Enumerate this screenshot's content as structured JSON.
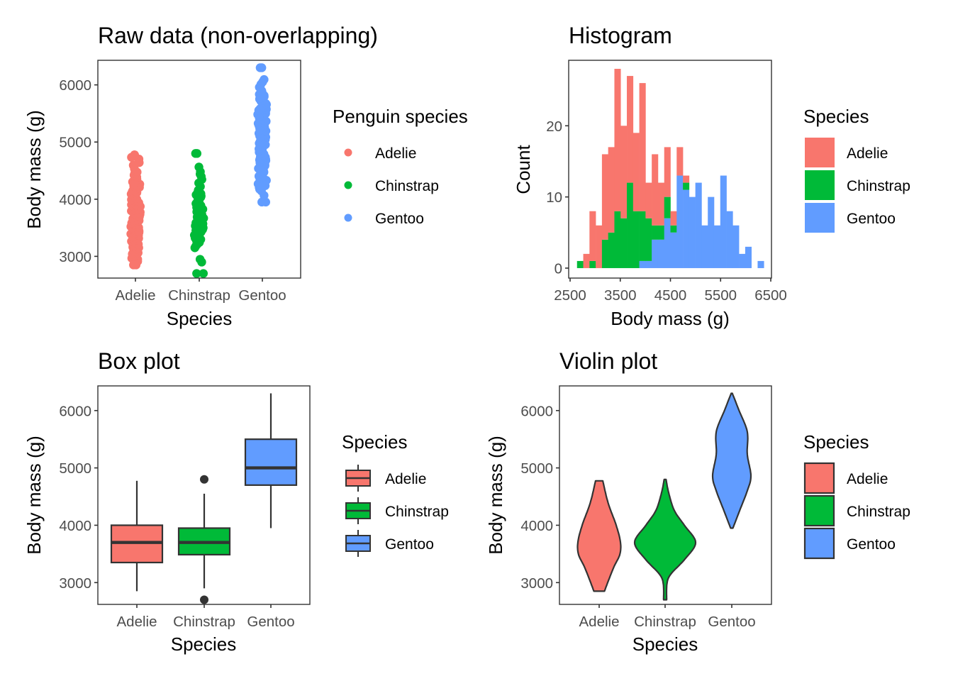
{
  "colors": {
    "Adelie": "#F8766D",
    "Chinstrap": "#00BA38",
    "Gentoo": "#619CFF",
    "outline": "#333333"
  },
  "chart_data": [
    {
      "id": "raw",
      "type": "scatter",
      "title": "Raw data (non-overlapping)",
      "xlabel": "Species",
      "ylabel": "Body mass (g)",
      "categories": [
        "Adelie",
        "Chinstrap",
        "Gentoo"
      ],
      "yticks": [
        3000,
        4000,
        5000,
        6000
      ],
      "ylim": [
        2620,
        6430
      ],
      "grid": false,
      "legend": {
        "title": "Penguin species",
        "position": "right",
        "entries": [
          "Adelie",
          "Chinstrap",
          "Gentoo"
        ]
      },
      "points_source": "binned counts of the histogram (same penguin data), jittered horizontally",
      "extremes": {
        "Adelie": [
          2850,
          4775
        ],
        "Chinstrap": [
          2700,
          2900,
          4800
        ],
        "Gentoo": [
          3950,
          6300
        ]
      }
    },
    {
      "id": "hist",
      "type": "bar",
      "subtype": "stacked-histogram",
      "title": "Histogram",
      "xlabel": "Body mass (g)",
      "ylabel": "Count",
      "xticks": [
        2500,
        3500,
        4500,
        5500,
        6500
      ],
      "yticks": [
        0,
        10,
        20
      ],
      "xlim": [
        2500,
        6500
      ],
      "ylim": [
        -1.4,
        29.2
      ],
      "bins": 30,
      "bin_start": 2638,
      "bin_width": 124.14,
      "stack_order": [
        "Gentoo",
        "Chinstrap",
        "Adelie"
      ],
      "series": [
        {
          "name": "Adelie",
          "values": [
            0,
            2,
            7,
            6,
            12,
            12,
            20,
            13,
            15,
            11,
            18,
            5,
            10,
            6,
            7,
            2,
            4,
            1,
            0,
            0,
            0,
            0,
            0,
            0,
            0,
            0,
            0,
            0,
            0,
            0
          ]
        },
        {
          "name": "Chinstrap",
          "values": [
            1,
            0,
            1,
            0,
            4,
            5,
            8,
            7,
            12,
            8,
            7,
            6,
            2,
            2,
            3,
            1,
            0,
            1,
            0,
            0,
            0,
            0,
            0,
            0,
            0,
            0,
            0,
            0,
            0,
            0
          ]
        },
        {
          "name": "Gentoo",
          "values": [
            0,
            0,
            0,
            0,
            0,
            0,
            0,
            0,
            0,
            0,
            1,
            1,
            4,
            4,
            7,
            5,
            13,
            11,
            10,
            12,
            6,
            10,
            6,
            13,
            8,
            6,
            2,
            3,
            0,
            1
          ]
        }
      ],
      "grid": false,
      "legend": {
        "title": "Species",
        "position": "right",
        "entries": [
          "Adelie",
          "Chinstrap",
          "Gentoo"
        ]
      }
    },
    {
      "id": "box",
      "type": "box",
      "title": "Box plot",
      "xlabel": "Species",
      "ylabel": "Body mass (g)",
      "categories": [
        "Adelie",
        "Chinstrap",
        "Gentoo"
      ],
      "yticks": [
        3000,
        4000,
        5000,
        6000
      ],
      "ylim": [
        2620,
        6430
      ],
      "boxes": [
        {
          "name": "Adelie",
          "lower_whisker": 2850,
          "q1": 3350,
          "median": 3700,
          "q3": 4000,
          "upper_whisker": 4775,
          "outliers": []
        },
        {
          "name": "Chinstrap",
          "lower_whisker": 2900,
          "q1": 3487,
          "median": 3700,
          "q3": 3950,
          "upper_whisker": 4550,
          "outliers": [
            2700,
            4800
          ]
        },
        {
          "name": "Gentoo",
          "lower_whisker": 3950,
          "q1": 4700,
          "median": 5000,
          "q3": 5500,
          "upper_whisker": 6300,
          "outliers": []
        }
      ],
      "grid": false,
      "legend": {
        "title": "Species",
        "position": "right",
        "entries": [
          "Adelie",
          "Chinstrap",
          "Gentoo"
        ]
      }
    },
    {
      "id": "violin",
      "type": "violin",
      "title": "Violin plot",
      "xlabel": "Species",
      "ylabel": "Body mass (g)",
      "categories": [
        "Adelie",
        "Chinstrap",
        "Gentoo"
      ],
      "yticks": [
        3000,
        4000,
        5000,
        6000
      ],
      "ylim": [
        2620,
        6430
      ],
      "violins": [
        {
          "name": "Adelie",
          "density_profile": [
            [
              2850,
              0.25
            ],
            [
              3020,
              0.42
            ],
            [
              3280,
              0.7
            ],
            [
              3490,
              0.97
            ],
            [
              3705,
              1.0
            ],
            [
              4000,
              0.8
            ],
            [
              4390,
              0.42
            ],
            [
              4775,
              0.17
            ]
          ]
        },
        {
          "name": "Chinstrap",
          "density_profile": [
            [
              2700,
              0.05
            ],
            [
              2980,
              0.06
            ],
            [
              3150,
              0.19
            ],
            [
              3410,
              0.65
            ],
            [
              3700,
              1.0
            ],
            [
              4000,
              0.63
            ],
            [
              4260,
              0.3
            ],
            [
              4560,
              0.12
            ],
            [
              4800,
              0.03
            ]
          ]
        },
        {
          "name": "Gentoo",
          "density_profile": [
            [
              3950,
              0.06
            ],
            [
              4220,
              0.37
            ],
            [
              4600,
              0.81
            ],
            [
              4860,
              1.0
            ],
            [
              5240,
              0.81
            ],
            [
              5630,
              0.81
            ],
            [
              6010,
              0.37
            ],
            [
              6300,
              0.03
            ]
          ]
        }
      ],
      "grid": false,
      "legend": {
        "title": "Species",
        "position": "right",
        "entries": [
          "Adelie",
          "Chinstrap",
          "Gentoo"
        ]
      }
    }
  ]
}
